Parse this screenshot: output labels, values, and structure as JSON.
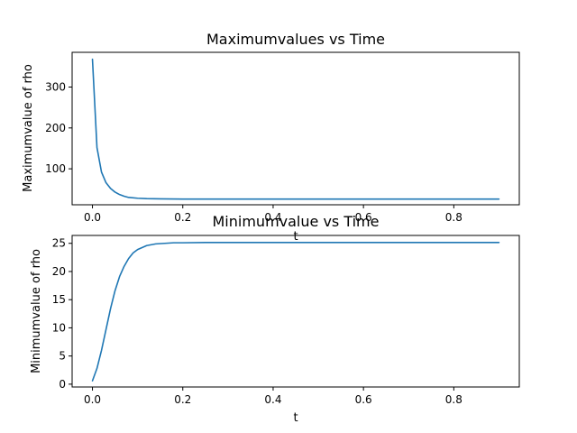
{
  "chart_data": [
    {
      "type": "line",
      "title": "Maximumvalues vs Time",
      "xlabel": "t",
      "ylabel": "Maximumvalue of rho",
      "xlim": [
        -0.045,
        0.945
      ],
      "ylim": [
        12,
        385
      ],
      "xticks": [
        0.0,
        0.2,
        0.4,
        0.6,
        0.8
      ],
      "xtick_labels": [
        "0.0",
        "0.2",
        "0.4",
        "0.6",
        "0.8"
      ],
      "yticks": [
        100,
        200,
        300
      ],
      "ytick_labels": [
        "100",
        "200",
        "300"
      ],
      "grid": false,
      "color": "#1f77b4",
      "series": [
        {
          "x": [
            0.0,
            0.01,
            0.02,
            0.03,
            0.04,
            0.05,
            0.06,
            0.07,
            0.08,
            0.1,
            0.12,
            0.15,
            0.2,
            0.3,
            0.5,
            0.7,
            0.9
          ],
          "y": [
            368,
            152,
            92,
            66,
            52,
            43,
            37,
            33,
            30,
            28,
            27,
            26.5,
            26,
            26,
            26,
            26,
            26
          ]
        }
      ]
    },
    {
      "type": "line",
      "title": "Minimumvalue vs Time",
      "xlabel": "t",
      "ylabel": "Minimumvalue of rho",
      "xlim": [
        -0.045,
        0.945
      ],
      "ylim": [
        -0.5,
        26.4
      ],
      "xticks": [
        0.0,
        0.2,
        0.4,
        0.6,
        0.8
      ],
      "xtick_labels": [
        "0.0",
        "0.2",
        "0.4",
        "0.6",
        "0.8"
      ],
      "yticks": [
        0,
        5,
        10,
        15,
        20,
        25
      ],
      "ytick_labels": [
        "0",
        "5",
        "10",
        "15",
        "20",
        "25"
      ],
      "grid": false,
      "color": "#1f77b4",
      "series": [
        {
          "x": [
            0.0,
            0.01,
            0.02,
            0.03,
            0.04,
            0.05,
            0.06,
            0.07,
            0.08,
            0.09,
            0.1,
            0.12,
            0.14,
            0.16,
            0.18,
            0.2,
            0.25,
            0.3,
            0.5,
            0.7,
            0.9
          ],
          "y": [
            0.6,
            2.8,
            6.0,
            9.7,
            13.4,
            16.6,
            19.1,
            20.9,
            22.3,
            23.3,
            23.9,
            24.6,
            24.9,
            25.0,
            25.1,
            25.1,
            25.15,
            25.15,
            25.15,
            25.15,
            25.15
          ]
        }
      ]
    }
  ]
}
